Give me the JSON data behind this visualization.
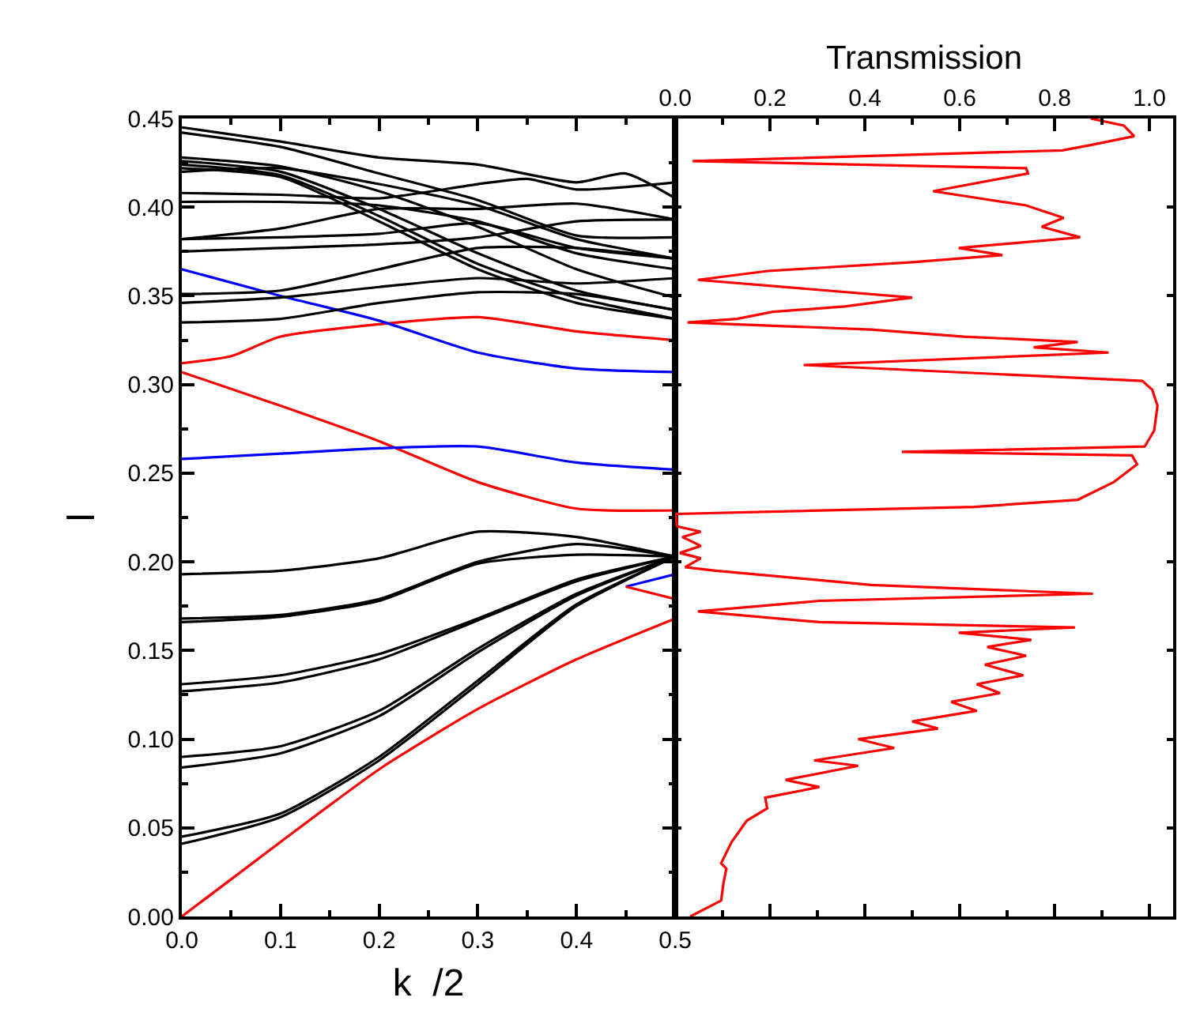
{
  "chart_data": [
    {
      "type": "line",
      "xlabel": "k  /2",
      "ylabel": "l",
      "xlim": [
        0,
        0.5
      ],
      "ylim": [
        0,
        0.45
      ],
      "xticks": [
        {
          "value": 0,
          "label": "0.0"
        },
        {
          "value": 0.05,
          "label": null
        },
        {
          "value": 0.1,
          "label": "0.1"
        },
        {
          "value": 0.15,
          "label": null
        },
        {
          "value": 0.2,
          "label": "0.2"
        },
        {
          "value": 0.25,
          "label": null
        },
        {
          "value": 0.3,
          "label": "0.3"
        },
        {
          "value": 0.35,
          "label": null
        },
        {
          "value": 0.4,
          "label": "0.4"
        },
        {
          "value": 0.45,
          "label": null
        },
        {
          "value": 0.5,
          "label": "0.5"
        }
      ],
      "yticks": [
        {
          "value": 0,
          "label": "0.00"
        },
        {
          "value": 0.025,
          "label": null
        },
        {
          "value": 0.05,
          "label": "0.05"
        },
        {
          "value": 0.075,
          "label": null
        },
        {
          "value": 0.1,
          "label": "0.10"
        },
        {
          "value": 0.125,
          "label": null
        },
        {
          "value": 0.15,
          "label": "0.15"
        },
        {
          "value": 0.175,
          "label": null
        },
        {
          "value": 0.2,
          "label": "0.20"
        },
        {
          "value": 0.225,
          "label": null
        },
        {
          "value": 0.25,
          "label": "0.25"
        },
        {
          "value": 0.275,
          "label": null
        },
        {
          "value": 0.3,
          "label": "0.30"
        },
        {
          "value": 0.325,
          "label": null
        },
        {
          "value": 0.35,
          "label": "0.35"
        },
        {
          "value": 0.375,
          "label": null
        },
        {
          "value": 0.4,
          "label": "0.40"
        },
        {
          "value": 0.425,
          "label": null
        },
        {
          "value": 0.45,
          "label": "0.45"
        }
      ],
      "series": [
        {
          "color": "#ff0000",
          "x": [
            0,
            0.1,
            0.2,
            0.3,
            0.4,
            0.5
          ],
          "values": [
            0,
            0.042,
            0.083,
            0.117,
            0.145,
            0.168
          ]
        },
        {
          "color": "#000000",
          "x": [
            0,
            0.1,
            0.2,
            0.3,
            0.4,
            0.5
          ],
          "values": [
            0.045,
            0.058,
            0.09,
            0.133,
            0.176,
            0.203
          ]
        },
        {
          "color": "#000000",
          "x": [
            0,
            0.1,
            0.2,
            0.3,
            0.4,
            0.5
          ],
          "values": [
            0.041,
            0.056,
            0.088,
            0.131,
            0.175,
            0.203
          ]
        },
        {
          "color": "#000000",
          "x": [
            0,
            0.1,
            0.2,
            0.3,
            0.4,
            0.5
          ],
          "values": [
            0.09,
            0.096,
            0.116,
            0.151,
            0.182,
            0.203
          ]
        },
        {
          "color": "#000000",
          "x": [
            0,
            0.1,
            0.2,
            0.3,
            0.4,
            0.5
          ],
          "values": [
            0.084,
            0.092,
            0.113,
            0.149,
            0.181,
            0.203
          ]
        },
        {
          "color": "#000000",
          "x": [
            0,
            0.1,
            0.2,
            0.3,
            0.4,
            0.5
          ],
          "values": [
            0.131,
            0.136,
            0.148,
            0.168,
            0.19,
            0.203
          ]
        },
        {
          "color": "#000000",
          "x": [
            0,
            0.1,
            0.2,
            0.3,
            0.4,
            0.5
          ],
          "values": [
            0.127,
            0.132,
            0.145,
            0.167,
            0.189,
            0.203
          ]
        },
        {
          "color": "#000000",
          "x": [
            0,
            0.1,
            0.2,
            0.3,
            0.4,
            0.5
          ],
          "values": [
            0.168,
            0.17,
            0.179,
            0.2,
            0.21,
            0.203
          ]
        },
        {
          "color": "#000000",
          "x": [
            0,
            0.1,
            0.2,
            0.3,
            0.4,
            0.5
          ],
          "values": [
            0.166,
            0.169,
            0.178,
            0.199,
            0.204,
            0.203
          ]
        },
        {
          "color": "#000000",
          "x": [
            0,
            0.1,
            0.2,
            0.3,
            0.4,
            0.5
          ],
          "values": [
            0.193,
            0.195,
            0.202,
            0.217,
            0.214,
            0.203
          ]
        },
        {
          "color": "#0000ff",
          "x": [
            0.45,
            0.5
          ],
          "values": [
            0.186,
            0.193
          ]
        },
        {
          "color": "#ff0000",
          "x": [
            0.45,
            0.5
          ],
          "values": [
            0.186,
            0.179
          ]
        },
        {
          "color": "#ff0000",
          "x": [
            0,
            0.1,
            0.2,
            0.3,
            0.4,
            0.5
          ],
          "values": [
            0.307,
            0.288,
            0.268,
            0.245,
            0.23,
            0.229
          ]
        },
        {
          "color": "#ff0000",
          "x": [
            0,
            0.05,
            0.1,
            0.2,
            0.3,
            0.4,
            0.5
          ],
          "values": [
            0.312,
            0.316,
            0.327,
            0.334,
            0.338,
            0.33,
            0.325
          ]
        },
        {
          "color": "#0000ff",
          "x": [
            0,
            0.1,
            0.2,
            0.3,
            0.4,
            0.5
          ],
          "values": [
            0.365,
            0.35,
            0.336,
            0.318,
            0.309,
            0.307
          ]
        },
        {
          "color": "#0000ff",
          "x": [
            0,
            0.1,
            0.2,
            0.3,
            0.4,
            0.5
          ],
          "values": [
            0.258,
            0.261,
            0.264,
            0.265,
            0.256,
            0.252
          ]
        },
        {
          "color": "#000000",
          "x": [
            0,
            0.1,
            0.2,
            0.3,
            0.4,
            0.45,
            0.5
          ],
          "values": [
            0.445,
            0.437,
            0.428,
            0.424,
            0.414,
            0.419,
            0.405
          ]
        },
        {
          "color": "#000000",
          "x": [
            0,
            0.1,
            0.2,
            0.3,
            0.4,
            0.5
          ],
          "values": [
            0.442,
            0.434,
            0.419,
            0.404,
            0.384,
            0.383
          ]
        },
        {
          "color": "#000000",
          "x": [
            0,
            0.1,
            0.2,
            0.3,
            0.4,
            0.5
          ],
          "values": [
            0.428,
            0.423,
            0.409,
            0.389,
            0.365,
            0.349
          ]
        },
        {
          "color": "#000000",
          "x": [
            0,
            0.1,
            0.2,
            0.3,
            0.4,
            0.5
          ],
          "values": [
            0.426,
            0.42,
            0.399,
            0.374,
            0.353,
            0.342
          ]
        },
        {
          "color": "#000000",
          "x": [
            0,
            0.1,
            0.2,
            0.3,
            0.4,
            0.5
          ],
          "values": [
            0.424,
            0.418,
            0.395,
            0.368,
            0.349,
            0.337
          ]
        },
        {
          "color": "#000000",
          "x": [
            0,
            0.1,
            0.2,
            0.3,
            0.4,
            0.5
          ],
          "values": [
            0.422,
            0.417,
            0.392,
            0.365,
            0.346,
            0.337
          ]
        },
        {
          "color": "#000000",
          "x": [
            0,
            0.1,
            0.2,
            0.3,
            0.4,
            0.5
          ],
          "values": [
            0.42,
            0.422,
            0.413,
            0.401,
            0.382,
            0.371
          ]
        },
        {
          "color": "#000000",
          "x": [
            0,
            0.1,
            0.2,
            0.3,
            0.35,
            0.4,
            0.5
          ],
          "values": [
            0.408,
            0.407,
            0.405,
            0.413,
            0.416,
            0.41,
            0.414
          ]
        },
        {
          "color": "#000000",
          "x": [
            0,
            0.1,
            0.2,
            0.3,
            0.4,
            0.5
          ],
          "values": [
            0.403,
            0.403,
            0.401,
            0.392,
            0.374,
            0.365
          ]
        },
        {
          "color": "#000000",
          "x": [
            0,
            0.1,
            0.2,
            0.3,
            0.4,
            0.5
          ],
          "values": [
            0.382,
            0.388,
            0.399,
            0.399,
            0.402,
            0.393
          ]
        },
        {
          "color": "#000000",
          "x": [
            0,
            0.1,
            0.2,
            0.3,
            0.4,
            0.5
          ],
          "values": [
            0.375,
            0.377,
            0.379,
            0.383,
            0.392,
            0.393
          ]
        },
        {
          "color": "#000000",
          "x": [
            0,
            0.1,
            0.2,
            0.3,
            0.4,
            0.5
          ],
          "values": [
            0.382,
            0.383,
            0.385,
            0.391,
            0.377,
            0.371
          ]
        },
        {
          "color": "#000000",
          "x": [
            0,
            0.1,
            0.2,
            0.3,
            0.4,
            0.5
          ],
          "values": [
            0.351,
            0.353,
            0.365,
            0.377,
            0.377,
            0.371
          ]
        },
        {
          "color": "#000000",
          "x": [
            0,
            0.1,
            0.2,
            0.3,
            0.4,
            0.5
          ],
          "values": [
            0.346,
            0.349,
            0.355,
            0.36,
            0.357,
            0.36
          ]
        },
        {
          "color": "#000000",
          "x": [
            0,
            0.1,
            0.2,
            0.3,
            0.4,
            0.5
          ],
          "values": [
            0.335,
            0.337,
            0.346,
            0.352,
            0.351,
            0.342
          ]
        }
      ]
    },
    {
      "type": "line",
      "xlabel": "Transmission",
      "xlim": [
        0,
        1.05
      ],
      "ylim": [
        0,
        0.45
      ],
      "tick_labels": "x",
      "xticks": [
        {
          "value": 0,
          "label": "0.0"
        },
        {
          "value": 0.1,
          "label": null
        },
        {
          "value": 0.2,
          "label": "0.2"
        },
        {
          "value": 0.3,
          "label": null
        },
        {
          "value": 0.4,
          "label": "0.4"
        },
        {
          "value": 0.5,
          "label": null
        },
        {
          "value": 0.6,
          "label": "0.6"
        },
        {
          "value": 0.7,
          "label": null
        },
        {
          "value": 0.8,
          "label": "0.8"
        },
        {
          "value": 0.9,
          "label": null
        },
        {
          "value": 1.0,
          "label": "1.0"
        }
      ],
      "yticks": [
        {
          "value": 0,
          "label": null
        },
        {
          "value": 0.05,
          "label": null
        },
        {
          "value": 0.1,
          "label": null
        },
        {
          "value": 0.15,
          "label": null
        },
        {
          "value": 0.2,
          "label": null
        },
        {
          "value": 0.25,
          "label": null
        },
        {
          "value": 0.3,
          "label": null
        },
        {
          "value": 0.35,
          "label": null
        },
        {
          "value": 0.4,
          "label": null
        },
        {
          "value": 0.45,
          "label": null
        }
      ],
      "series": [
        {
          "color": "#ff0000",
          "x": [
            0.032,
            0.097,
            0.102,
            0.108,
            0.097,
            0.119,
            0.151,
            0.194,
            0.19,
            0.304,
            0.233,
            0.386,
            0.293,
            0.462,
            0.386,
            0.554,
            0.5,
            0.636,
            0.582,
            0.685,
            0.636,
            0.734,
            0.653,
            0.74,
            0.658,
            0.751,
            0.598,
            0.843,
            0.304,
            0.048,
            0.304,
            0.881,
            0.413,
            0.086,
            0.021,
            0.054,
            0.01,
            0.054,
            0.015,
            0.054,
            0.004,
            0.001,
            0.63,
            0.849,
            0.925,
            0.974,
            0.963,
            0.478,
            0.99,
            1.01,
            1.017,
            1.006,
            0.985,
            0.271,
            0.914,
            0.756,
            0.849,
            0.609,
            0.413,
            0.026,
            0.13,
            0.206,
            0.358,
            0.5,
            0.048,
            0.195,
            0.5,
            0.69,
            0.598,
            0.854,
            0.773,
            0.819,
            0.74,
            0.544,
            0.744,
            0.74,
            0.037,
            0.816,
            0.876,
            0.968,
            0.946,
            0.876
          ],
          "values": [
            0,
            0.009,
            0.019,
            0.027,
            0.03,
            0.042,
            0.054,
            0.061,
            0.067,
            0.073,
            0.077,
            0.085,
            0.088,
            0.095,
            0.1,
            0.106,
            0.11,
            0.116,
            0.121,
            0.126,
            0.131,
            0.136,
            0.142,
            0.147,
            0.152,
            0.156,
            0.16,
            0.163,
            0.166,
            0.172,
            0.178,
            0.182,
            0.187,
            0.195,
            0.197,
            0.202,
            0.205,
            0.209,
            0.214,
            0.217,
            0.22,
            0.227,
            0.231,
            0.235,
            0.245,
            0.255,
            0.26,
            0.262,
            0.265,
            0.274,
            0.288,
            0.297,
            0.302,
            0.311,
            0.318,
            0.321,
            0.324,
            0.327,
            0.331,
            0.335,
            0.337,
            0.341,
            0.344,
            0.349,
            0.359,
            0.364,
            0.369,
            0.373,
            0.377,
            0.383,
            0.389,
            0.394,
            0.401,
            0.409,
            0.419,
            0.422,
            0.426,
            0.432,
            0.435,
            0.44,
            0.446,
            0.45
          ]
        }
      ]
    }
  ]
}
